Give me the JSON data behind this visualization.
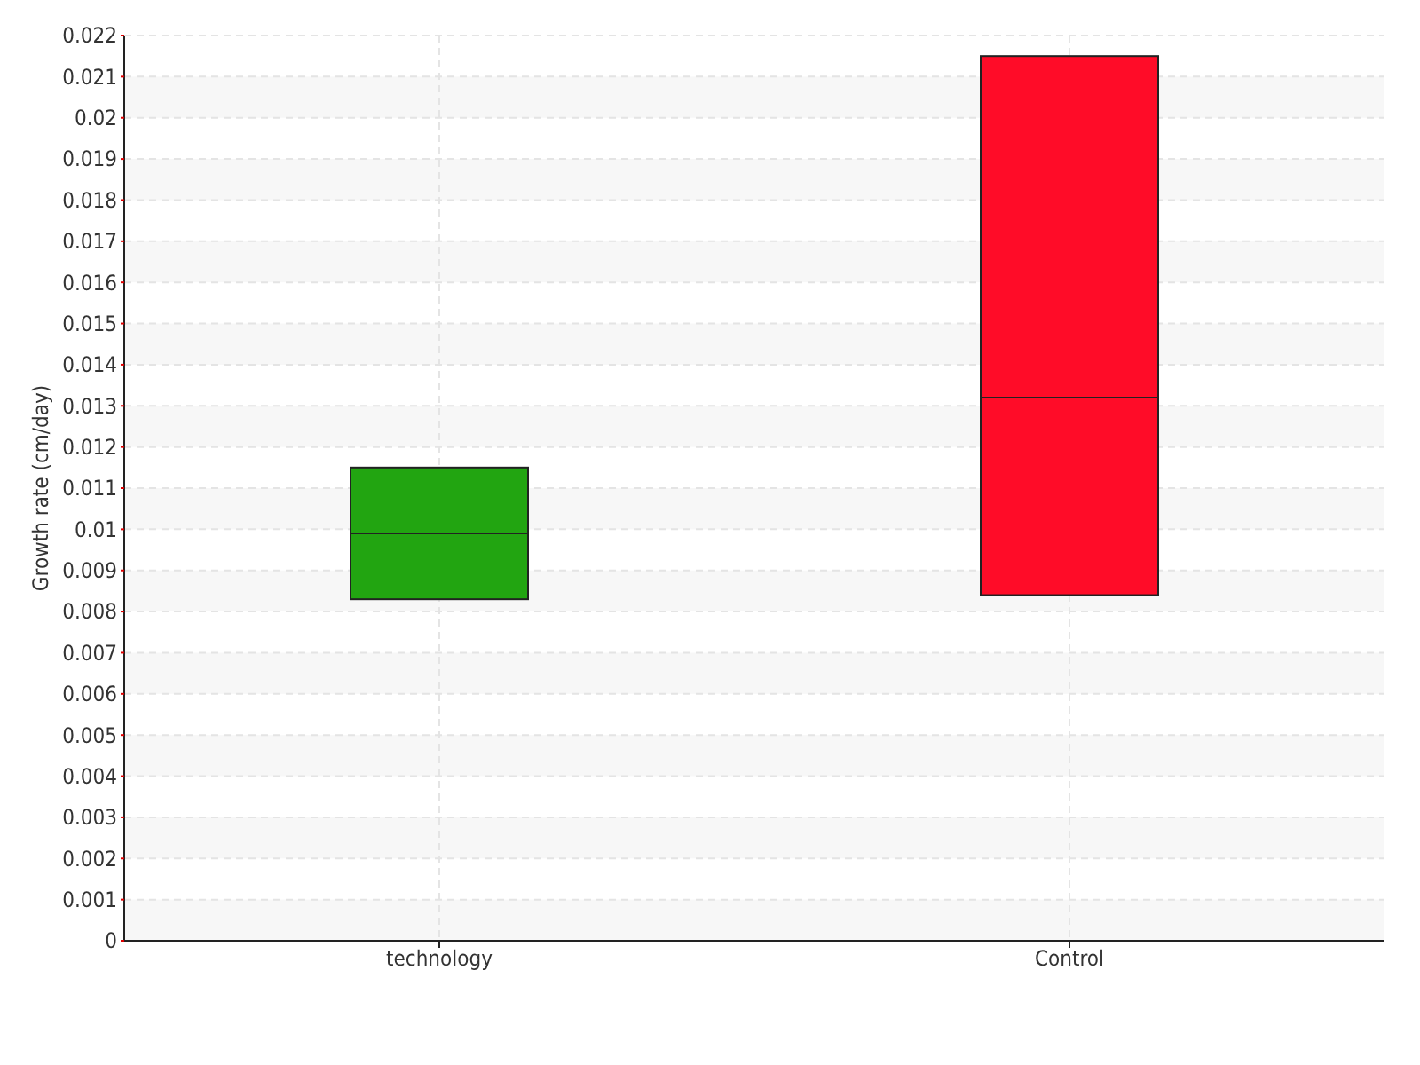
{
  "chart_data": {
    "type": "box",
    "ylabel": "Growth rate (cm/day)",
    "categories": [
      "technology",
      "Control"
    ],
    "ylim": [
      0,
      0.022
    ],
    "yticks": [
      0,
      0.001,
      0.002,
      0.003,
      0.004,
      0.005,
      0.006,
      0.007,
      0.008,
      0.009,
      0.01,
      0.011,
      0.012,
      0.013,
      0.014,
      0.015,
      0.016,
      0.017,
      0.018,
      0.019,
      0.02,
      0.021,
      0.022
    ],
    "grid": true,
    "series": [
      {
        "colors": [
          "#22a511",
          "#ff0c28"
        ],
        "boxes": [
          {
            "low": 0.0083,
            "q1": 0.0083,
            "median": 0.0099,
            "q3": 0.0115,
            "high": 0.0115
          },
          {
            "low": 0.0084,
            "q1": 0.0084,
            "median": 0.0132,
            "q3": 0.0215,
            "high": 0.0215
          }
        ]
      }
    ]
  }
}
